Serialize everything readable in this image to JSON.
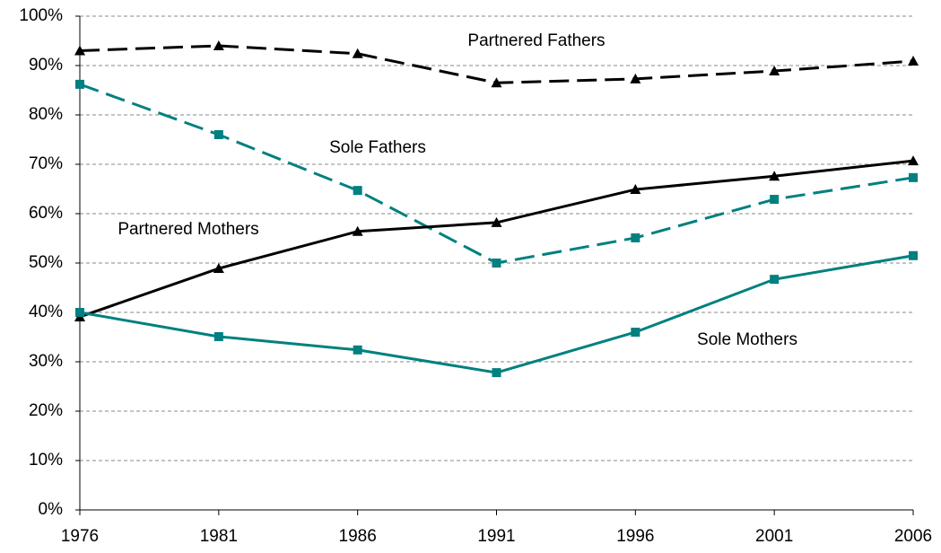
{
  "chart_data": {
    "type": "line",
    "x": [
      1976,
      1981,
      1986,
      1991,
      1996,
      2001,
      2006
    ],
    "xlim": [
      1976,
      2006
    ],
    "xticks": [
      1976,
      1981,
      1986,
      1991,
      1996,
      2001,
      2006
    ],
    "ylim": [
      0,
      100
    ],
    "yticks": [
      {
        "value": 0,
        "label": "0%"
      },
      {
        "value": 10,
        "label": "10%"
      },
      {
        "value": 20,
        "label": "20%"
      },
      {
        "value": 30,
        "label": "30%"
      },
      {
        "value": 40,
        "label": "40%"
      },
      {
        "value": 50,
        "label": "50%"
      },
      {
        "value": 60,
        "label": "60%"
      },
      {
        "value": 70,
        "label": "70%"
      },
      {
        "value": 80,
        "label": "80%"
      },
      {
        "value": 90,
        "label": "90%"
      },
      {
        "value": 100,
        "label": "100%"
      }
    ],
    "grid": true,
    "series": [
      {
        "name": "Partnered Fathers",
        "color": "#000000",
        "dashed": true,
        "marker": "triangle",
        "values": [
          93,
          94,
          92.4,
          86.5,
          87.3,
          88.9,
          90.9
        ]
      },
      {
        "name": "Sole Fathers",
        "color": "#008080",
        "dashed": true,
        "marker": "square",
        "values": [
          86.2,
          76,
          64.7,
          50,
          55.1,
          62.9,
          67.3
        ]
      },
      {
        "name": "Partnered Mothers",
        "color": "#000000",
        "dashed": false,
        "marker": "triangle",
        "values": [
          39.1,
          48.9,
          56.4,
          58.2,
          64.9,
          67.6,
          70.7
        ]
      },
      {
        "name": "Sole Mothers",
        "color": "#008080",
        "dashed": false,
        "marker": "square",
        "values": [
          40,
          35.1,
          32.4,
          27.8,
          36,
          46.7,
          51.5
        ]
      }
    ]
  }
}
